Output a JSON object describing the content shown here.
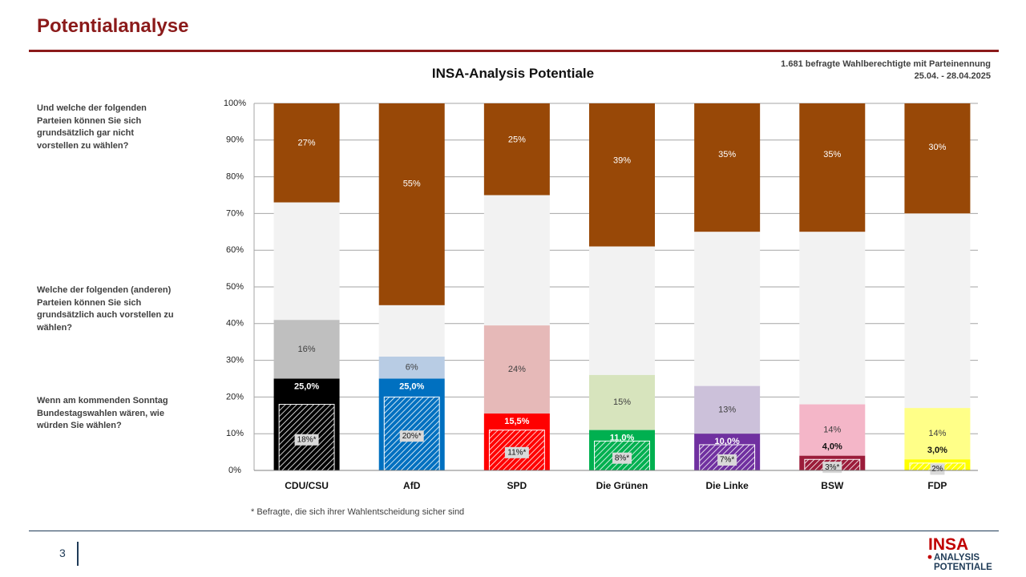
{
  "header": {
    "title": "Potentialanalyse"
  },
  "meta": {
    "sample": "1.681 befragte Wahlberechtigte mit Parteinennung",
    "dates": "25.04. - 28.04.2025"
  },
  "questions": {
    "never": "Und welche der folgenden Parteien können Sie sich grundsätzlich gar nicht vorstellen zu wählen?",
    "also": "Welche der folgenden (anderen) Parteien können Sie sich grundsätzlich auch vorstellen zu wählen?",
    "vote": "Wenn am kommenden Sonntag Bundestagswahlen wären, wie würden Sie wählen?"
  },
  "footnote": "* Befragte, die sich ihrer Wahlentscheidung sicher sind",
  "page_number": "3",
  "logo": {
    "top": "INSA",
    "line1": "ANALYSIS",
    "line2": "POTENTIALE"
  },
  "colors": {
    "never": "#984807",
    "undecided": "#f2f2f2",
    "parties": [
      "#000000",
      "#0070c0",
      "#ff0000",
      "#00b050",
      "#7030a0",
      "#9b1c3a",
      "#ffff00"
    ],
    "potential": [
      "#bfbfbf",
      "#b8cce4",
      "#e6b9b8",
      "#d7e4bd",
      "#ccc1da",
      "#f4b6c8",
      "#ffff88"
    ]
  },
  "chart_data": {
    "type": "bar",
    "stacked": true,
    "title": "INSA-Analysis Potentiale",
    "categories": [
      "CDU/CSU",
      "AfD",
      "SPD",
      "Die Grünen",
      "Die Linke",
      "BSW",
      "FDP"
    ],
    "ylim": [
      0,
      100
    ],
    "yticks": [
      "0%",
      "10%",
      "20%",
      "30%",
      "40%",
      "50%",
      "60%",
      "70%",
      "80%",
      "90%",
      "100%"
    ],
    "grid": true,
    "series": {
      "vote": {
        "values": [
          25.0,
          25.0,
          15.5,
          11.0,
          10.0,
          4.0,
          3.0
        ],
        "labels": [
          "25,0%",
          "25,0%",
          "15,5%",
          "11,0%",
          "10,0%",
          "4,0%",
          "3,0%"
        ]
      },
      "certain": {
        "values": [
          18,
          20,
          11,
          8,
          7,
          3,
          2
        ],
        "labels": [
          "18%*",
          "20%*",
          "11%*",
          "8%*",
          "7%*",
          "3%*",
          "2%"
        ]
      },
      "potential": {
        "values": [
          16,
          6,
          24,
          15,
          13,
          14,
          14
        ],
        "labels": [
          "16%",
          "6%",
          "24%",
          "15%",
          "13%",
          "14%",
          "14%"
        ]
      },
      "never": {
        "values": [
          27,
          55,
          25,
          39,
          35,
          35,
          30
        ],
        "labels": [
          "27%",
          "55%",
          "25%",
          "39%",
          "35%",
          "35%",
          "30%"
        ]
      }
    }
  }
}
